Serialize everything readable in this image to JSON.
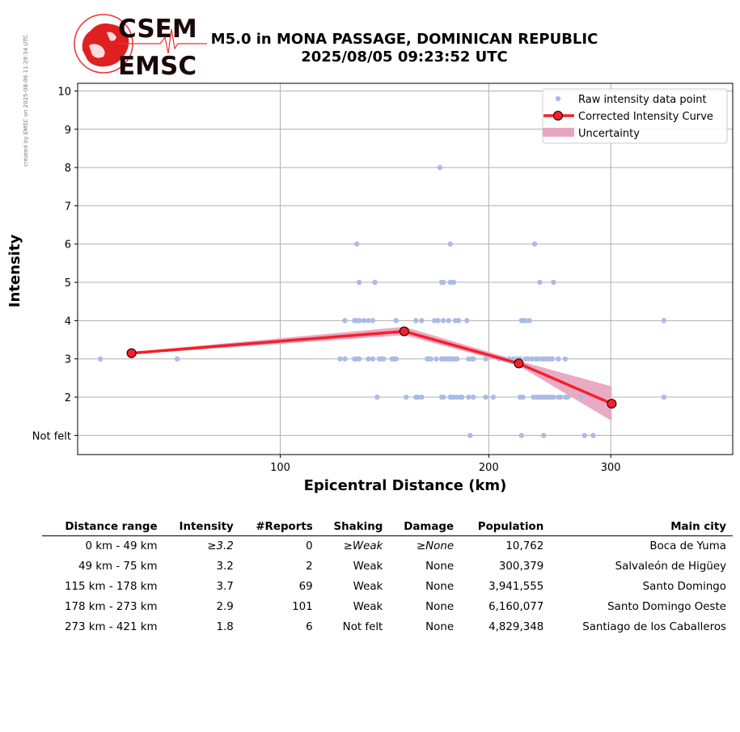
{
  "side_note": "created by EMSC on 2025-08-06 11:29:34 UTC",
  "logo": {
    "line1": "CSEM",
    "line2": "EMSC"
  },
  "title": {
    "line1": "M5.0 in MONA PASSAGE, DOMINICAN REPUBLIC",
    "line2": "2025/08/05 09:23:52 UTC"
  },
  "colors": {
    "raw": "#aabbe6",
    "curve": "#f5202a",
    "uncertainty": "#e8a5c1",
    "grid": "#b0b0b0"
  },
  "chart_data": {
    "type": "scatter",
    "xlabel": "Epicentral Distance (km)",
    "ylabel": "Intensity",
    "xscale": "log",
    "xlim": [
      51,
      450
    ],
    "ylim": [
      0.5,
      10.2
    ],
    "xticks": [
      100,
      200,
      300
    ],
    "yticks": [
      1,
      2,
      3,
      4,
      5,
      6,
      7,
      8,
      9,
      10
    ],
    "ytick_labels": [
      "Not felt",
      "2",
      "3",
      "4",
      "5",
      "6",
      "7",
      "8",
      "9",
      "10"
    ],
    "grid": true,
    "legend_position": "top-right",
    "legend": [
      "Raw intensity data point",
      "Corrected Intensity Curve",
      "Uncertainty"
    ],
    "raw_points": [
      [
        55,
        3
      ],
      [
        71,
        3
      ],
      [
        122,
        3
      ],
      [
        124,
        3
      ],
      [
        128,
        3
      ],
      [
        129,
        3
      ],
      [
        130,
        3
      ],
      [
        134,
        3
      ],
      [
        136,
        3
      ],
      [
        139,
        3
      ],
      [
        140,
        3
      ],
      [
        141,
        3
      ],
      [
        145,
        3
      ],
      [
        146,
        3
      ],
      [
        147,
        3
      ],
      [
        163,
        3
      ],
      [
        164,
        3
      ],
      [
        165,
        3
      ],
      [
        168,
        3
      ],
      [
        171,
        3
      ],
      [
        172,
        3
      ],
      [
        173,
        3
      ],
      [
        174,
        3
      ],
      [
        175,
        3
      ],
      [
        176,
        3
      ],
      [
        177,
        3
      ],
      [
        178,
        3
      ],
      [
        180,
        3
      ],
      [
        187,
        3
      ],
      [
        189,
        3
      ],
      [
        190,
        3
      ],
      [
        198,
        3
      ],
      [
        207,
        3
      ],
      [
        210,
        3
      ],
      [
        214,
        3
      ],
      [
        217,
        3
      ],
      [
        220,
        3
      ],
      [
        222,
        3
      ],
      [
        226,
        3
      ],
      [
        228,
        3
      ],
      [
        231,
        3
      ],
      [
        234,
        3
      ],
      [
        236,
        3
      ],
      [
        239,
        3
      ],
      [
        241,
        3
      ],
      [
        243,
        3
      ],
      [
        245,
        3
      ],
      [
        247,
        3
      ],
      [
        252,
        3
      ],
      [
        258,
        3
      ],
      [
        124,
        4
      ],
      [
        128,
        4
      ],
      [
        129,
        4
      ],
      [
        130,
        4
      ],
      [
        132,
        4
      ],
      [
        134,
        4
      ],
      [
        136,
        4
      ],
      [
        147,
        4
      ],
      [
        157,
        4
      ],
      [
        160,
        4
      ],
      [
        167,
        4
      ],
      [
        169,
        4
      ],
      [
        172,
        4
      ],
      [
        175,
        4
      ],
      [
        179,
        4
      ],
      [
        181,
        4
      ],
      [
        186,
        4
      ],
      [
        223,
        4
      ],
      [
        224,
        4
      ],
      [
        226,
        4
      ],
      [
        229,
        4
      ],
      [
        358,
        4
      ],
      [
        130,
        5
      ],
      [
        137,
        5
      ],
      [
        171,
        5
      ],
      [
        172,
        5
      ],
      [
        176,
        5
      ],
      [
        178,
        5
      ],
      [
        237,
        5
      ],
      [
        248,
        5
      ],
      [
        129,
        6
      ],
      [
        176,
        6
      ],
      [
        233,
        6
      ],
      [
        170,
        8
      ],
      [
        138,
        2
      ],
      [
        152,
        2
      ],
      [
        157,
        2
      ],
      [
        158,
        2
      ],
      [
        160,
        2
      ],
      [
        171,
        2
      ],
      [
        172,
        2
      ],
      [
        176,
        2
      ],
      [
        177,
        2
      ],
      [
        178,
        2
      ],
      [
        180,
        2
      ],
      [
        182,
        2
      ],
      [
        183,
        2
      ],
      [
        187,
        2
      ],
      [
        190,
        2
      ],
      [
        198,
        2
      ],
      [
        203,
        2
      ],
      [
        222,
        2
      ],
      [
        224,
        2
      ],
      [
        232,
        2
      ],
      [
        234,
        2
      ],
      [
        236,
        2
      ],
      [
        238,
        2
      ],
      [
        240,
        2
      ],
      [
        242,
        2
      ],
      [
        244,
        2
      ],
      [
        246,
        2
      ],
      [
        248,
        2
      ],
      [
        252,
        2
      ],
      [
        254,
        2
      ],
      [
        258,
        2
      ],
      [
        260,
        2
      ],
      [
        272,
        2
      ],
      [
        358,
        2
      ],
      [
        188,
        1
      ],
      [
        223,
        1
      ],
      [
        240,
        1
      ],
      [
        275,
        1
      ],
      [
        283,
        1
      ]
    ],
    "curve_points": [
      [
        61,
        3.15
      ],
      [
        151,
        3.72
      ],
      [
        221,
        2.88
      ],
      [
        301,
        1.83
      ]
    ],
    "uncertainty": {
      "distances": [
        61,
        151,
        221,
        301
      ],
      "lower": [
        3.12,
        3.62,
        2.82,
        1.38
      ],
      "upper": [
        3.18,
        3.84,
        2.95,
        2.28
      ]
    }
  },
  "table": {
    "headers": [
      "Distance range",
      "Intensity",
      "#Reports",
      "Shaking",
      "Damage",
      "Population",
      "Main city"
    ],
    "rows": [
      [
        "0 km -   49 km",
        "≥3.2",
        "0",
        "≥Weak",
        "≥None",
        "10,762",
        "Boca de Yuma"
      ],
      [
        "49 km -   75 km",
        "3.2",
        "2",
        "Weak",
        "None",
        "300,379",
        "Salvaleón de Higüey"
      ],
      [
        "115 km -  178 km",
        "3.7",
        "69",
        "Weak",
        "None",
        "3,941,555",
        "Santo Domingo"
      ],
      [
        "178 km -  273 km",
        "2.9",
        "101",
        "Weak",
        "None",
        "6,160,077",
        "Santo Domingo Oeste"
      ],
      [
        "273 km -  421 km",
        "1.8",
        "6",
        "Not felt",
        "None",
        "4,829,348",
        "Santiago de los Caballeros"
      ]
    ]
  }
}
